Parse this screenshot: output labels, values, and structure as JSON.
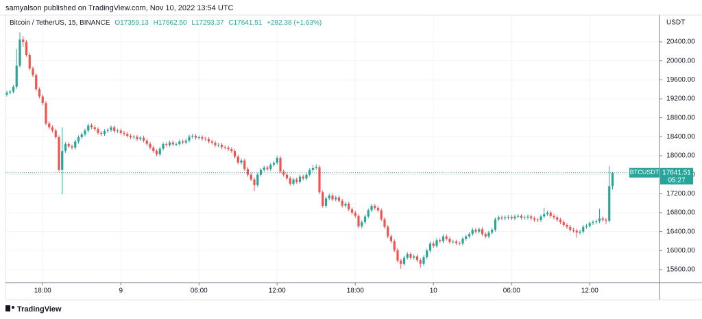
{
  "chart_data": {
    "type": "candlestick",
    "attribution": "samyalson published on TradingView.com, Nov 10, 2022 13:54 UTC",
    "symbol": "Bitcoin / TetherUS, 15, BINANCE",
    "header": {
      "open": "O17359.13",
      "high": "H17662.50",
      "low": "L17293.37",
      "close": "C17641.51",
      "change": "+282.38 (+1.63%)"
    },
    "y_unit": "USDT",
    "ticker": "BTCUSDT",
    "countdown": "05:27",
    "brand": "TradingView",
    "up_color": "#26a69a",
    "down_color": "#ef5350",
    "grid": true,
    "xlim": [
      -0.42,
      200.42
    ],
    "xticks": [
      {
        "value": 11,
        "label": "18:00"
      },
      {
        "value": 35,
        "label": "9"
      },
      {
        "value": 59,
        "label": "06:00"
      },
      {
        "value": 83,
        "label": "12:00"
      },
      {
        "value": 107,
        "label": "18:00"
      },
      {
        "value": 131,
        "label": "10"
      },
      {
        "value": 155,
        "label": "06:00"
      },
      {
        "value": 179,
        "label": "12:00"
      }
    ],
    "ylim": [
      15325,
      20964
    ],
    "yticks": [
      {
        "value": 15600,
        "label": "15600.00"
      },
      {
        "value": 16000,
        "label": "16000.00"
      },
      {
        "value": 16400,
        "label": "16400.00"
      },
      {
        "value": 16800,
        "label": "16800.00"
      },
      {
        "value": 17200,
        "label": "17200.00"
      },
      {
        "value": 17600,
        "label": "17600.00"
      },
      {
        "value": 18000,
        "label": "18000.00"
      },
      {
        "value": 18400,
        "label": "18400.00"
      },
      {
        "value": 18800,
        "label": "18800.00"
      },
      {
        "value": 19200,
        "label": "19200.00"
      },
      {
        "value": 19600,
        "label": "19600.00"
      },
      {
        "value": 20000,
        "label": "20000.00"
      },
      {
        "value": 20400,
        "label": "20400.00"
      }
    ],
    "ohlc": [
      [
        19290,
        19370,
        19250,
        19330
      ],
      [
        19330,
        19390,
        19290,
        19350
      ],
      [
        19350,
        19490,
        19310,
        19450
      ],
      [
        19450,
        20250,
        19410,
        19900
      ],
      [
        19900,
        20600,
        19860,
        20450
      ],
      [
        20450,
        20520,
        20300,
        20400
      ],
      [
        20400,
        20440,
        20085,
        20125
      ],
      [
        20125,
        20165,
        19800,
        19840
      ],
      [
        19840,
        19880,
        19660,
        19700
      ],
      [
        19700,
        19740,
        19360,
        19400
      ],
      [
        19400,
        19440,
        19210,
        19250
      ],
      [
        19250,
        19290,
        19070,
        19110
      ],
      [
        19110,
        19150,
        18640,
        18680
      ],
      [
        18680,
        18720,
        18560,
        18600
      ],
      [
        18600,
        18640,
        18490,
        18530
      ],
      [
        18530,
        18570,
        18350,
        18390
      ],
      [
        18390,
        18430,
        17660,
        17700
      ],
      [
        17700,
        18600,
        17190,
        18100
      ],
      [
        18100,
        18285,
        18060,
        18245
      ],
      [
        18245,
        18285,
        18160,
        18200
      ],
      [
        18200,
        18240,
        18130,
        18170
      ],
      [
        18170,
        18340,
        18130,
        18300
      ],
      [
        18300,
        18430,
        18260,
        18390
      ],
      [
        18390,
        18490,
        18350,
        18450
      ],
      [
        18450,
        18570,
        18410,
        18530
      ],
      [
        18530,
        18680,
        18490,
        18640
      ],
      [
        18640,
        18680,
        18560,
        18600
      ],
      [
        18600,
        18640,
        18520,
        18560
      ],
      [
        18560,
        18600,
        18440,
        18480
      ],
      [
        18480,
        18520,
        18420,
        18460
      ],
      [
        18460,
        18560,
        18420,
        18520
      ],
      [
        18520,
        18580,
        18480,
        18540
      ],
      [
        18540,
        18640,
        18500,
        18600
      ],
      [
        18600,
        18640,
        18480,
        18520
      ],
      [
        18520,
        18570,
        18480,
        18530
      ],
      [
        18530,
        18570,
        18440,
        18480
      ],
      [
        18480,
        18520,
        18420,
        18460
      ],
      [
        18460,
        18500,
        18380,
        18420
      ],
      [
        18420,
        18460,
        18350,
        18390
      ],
      [
        18390,
        18440,
        18350,
        18400
      ],
      [
        18400,
        18440,
        18310,
        18350
      ],
      [
        18350,
        18420,
        18310,
        18380
      ],
      [
        18380,
        18420,
        18280,
        18320
      ],
      [
        18320,
        18360,
        18210,
        18250
      ],
      [
        18250,
        18290,
        18130,
        18170
      ],
      [
        18170,
        18210,
        18060,
        18100
      ],
      [
        18100,
        18140,
        17990,
        18030
      ],
      [
        18030,
        18190,
        17990,
        18150
      ],
      [
        18150,
        18285,
        18110,
        18245
      ],
      [
        18245,
        18285,
        18190,
        18230
      ],
      [
        18230,
        18320,
        18190,
        18280
      ],
      [
        18280,
        18320,
        18200,
        18240
      ],
      [
        18240,
        18285,
        18200,
        18245
      ],
      [
        18245,
        18340,
        18205,
        18300
      ],
      [
        18300,
        18340,
        18240,
        18280
      ],
      [
        18280,
        18360,
        18240,
        18320
      ],
      [
        18320,
        18440,
        18280,
        18400
      ],
      [
        18400,
        18460,
        18360,
        18420
      ],
      [
        18420,
        18460,
        18340,
        18380
      ],
      [
        18380,
        18430,
        18340,
        18390
      ],
      [
        18390,
        18430,
        18320,
        18360
      ],
      [
        18360,
        18400,
        18310,
        18350
      ],
      [
        18350,
        18390,
        18260,
        18300
      ],
      [
        18300,
        18340,
        18235,
        18275
      ],
      [
        18275,
        18315,
        18180,
        18220
      ],
      [
        18220,
        18270,
        18180,
        18230
      ],
      [
        18230,
        18270,
        18140,
        18180
      ],
      [
        18180,
        18220,
        18130,
        18170
      ],
      [
        18170,
        18210,
        18100,
        18140
      ],
      [
        18140,
        18180,
        18060,
        18100
      ],
      [
        18100,
        18140,
        17940,
        17980
      ],
      [
        17980,
        18020,
        17815,
        17855
      ],
      [
        17855,
        17940,
        17815,
        17900
      ],
      [
        17900,
        17940,
        17680,
        17720
      ],
      [
        17720,
        17760,
        17560,
        17600
      ],
      [
        17600,
        17640,
        17460,
        17500
      ],
      [
        17500,
        17540,
        17260,
        17380
      ],
      [
        17380,
        17640,
        17340,
        17600
      ],
      [
        17600,
        17740,
        17560,
        17700
      ],
      [
        17700,
        17790,
        17660,
        17750
      ],
      [
        17750,
        17790,
        17680,
        17720
      ],
      [
        17720,
        17850,
        17680,
        17810
      ],
      [
        17810,
        17890,
        17770,
        17850
      ],
      [
        17850,
        18000,
        17810,
        17955
      ],
      [
        17955,
        17995,
        17630,
        17670
      ],
      [
        17670,
        17710,
        17560,
        17600
      ],
      [
        17600,
        17640,
        17485,
        17525
      ],
      [
        17525,
        17565,
        17370,
        17410
      ],
      [
        17410,
        17540,
        17370,
        17500
      ],
      [
        17500,
        17540,
        17410,
        17450
      ],
      [
        17450,
        17600,
        17410,
        17560
      ],
      [
        17560,
        17600,
        17480,
        17520
      ],
      [
        17520,
        17640,
        17480,
        17600
      ],
      [
        17600,
        17740,
        17560,
        17700
      ],
      [
        17700,
        17800,
        17660,
        17740
      ],
      [
        17740,
        17820,
        17700,
        17760
      ],
      [
        17760,
        17800,
        17190,
        17230
      ],
      [
        17230,
        17270,
        16905,
        16945
      ],
      [
        16945,
        17140,
        16905,
        17100
      ],
      [
        17100,
        17200,
        17060,
        17160
      ],
      [
        17160,
        17200,
        17040,
        17080
      ],
      [
        17080,
        17160,
        17040,
        17120
      ],
      [
        17120,
        17160,
        17010,
        17050
      ],
      [
        17050,
        17090,
        16910,
        16950
      ],
      [
        16950,
        17030,
        16910,
        16990
      ],
      [
        16990,
        17030,
        16830,
        16870
      ],
      [
        16870,
        16910,
        16760,
        16800
      ],
      [
        16800,
        16840,
        16690,
        16730
      ],
      [
        16730,
        16770,
        16470,
        16510
      ],
      [
        16510,
        16640,
        16470,
        16600
      ],
      [
        16600,
        16760,
        16560,
        16720
      ],
      [
        16720,
        16890,
        16680,
        16850
      ],
      [
        16850,
        16985,
        16810,
        16945
      ],
      [
        16945,
        16985,
        16860,
        16900
      ],
      [
        16900,
        16940,
        16810,
        16850
      ],
      [
        16850,
        16890,
        16620,
        16660
      ],
      [
        16660,
        16700,
        16460,
        16500
      ],
      [
        16500,
        16540,
        16260,
        16300
      ],
      [
        16300,
        16340,
        16160,
        16200
      ],
      [
        16200,
        16240,
        15970,
        16010
      ],
      [
        16010,
        16050,
        15750,
        15790
      ],
      [
        15790,
        15830,
        15620,
        15720
      ],
      [
        15720,
        15890,
        15680,
        15850
      ],
      [
        15850,
        15970,
        15810,
        15930
      ],
      [
        15930,
        15970,
        15810,
        15850
      ],
      [
        15850,
        15920,
        15810,
        15880
      ],
      [
        15880,
        15920,
        15760,
        15800
      ],
      [
        15800,
        15840,
        15640,
        15720
      ],
      [
        15720,
        15900,
        15680,
        15860
      ],
      [
        15860,
        16040,
        15820,
        16000
      ],
      [
        16000,
        16190,
        15960,
        16150
      ],
      [
        16150,
        16190,
        16060,
        16100
      ],
      [
        16100,
        16260,
        16060,
        16220
      ],
      [
        16220,
        16260,
        16160,
        16200
      ],
      [
        16200,
        16340,
        16160,
        16300
      ],
      [
        16300,
        16340,
        16210,
        16250
      ],
      [
        16250,
        16290,
        16140,
        16180
      ],
      [
        16180,
        16230,
        16140,
        16190
      ],
      [
        16190,
        16230,
        16120,
        16160
      ],
      [
        16160,
        16200,
        16110,
        16150
      ],
      [
        16150,
        16290,
        16110,
        16250
      ],
      [
        16250,
        16340,
        16210,
        16300
      ],
      [
        16300,
        16390,
        16260,
        16350
      ],
      [
        16350,
        16480,
        16310,
        16440
      ],
      [
        16440,
        16480,
        16360,
        16400
      ],
      [
        16400,
        16490,
        16360,
        16450
      ],
      [
        16450,
        16490,
        16310,
        16350
      ],
      [
        16350,
        16390,
        16260,
        16300
      ],
      [
        16300,
        16420,
        16260,
        16380
      ],
      [
        16380,
        16480,
        16340,
        16440
      ],
      [
        16440,
        16700,
        16400,
        16660
      ],
      [
        16660,
        16740,
        16620,
        16700
      ],
      [
        16700,
        16740,
        16640,
        16680
      ],
      [
        16680,
        16740,
        16640,
        16700
      ],
      [
        16700,
        16750,
        16660,
        16710
      ],
      [
        16710,
        16750,
        16640,
        16680
      ],
      [
        16680,
        16760,
        16640,
        16720
      ],
      [
        16720,
        16770,
        16680,
        16730
      ],
      [
        16730,
        16770,
        16650,
        16690
      ],
      [
        16690,
        16740,
        16650,
        16700
      ],
      [
        16700,
        16760,
        16660,
        16720
      ],
      [
        16720,
        16760,
        16640,
        16680
      ],
      [
        16680,
        16720,
        16610,
        16650
      ],
      [
        16650,
        16690,
        16600,
        16640
      ],
      [
        16640,
        16760,
        16600,
        16720
      ],
      [
        16720,
        16900,
        16680,
        16770
      ],
      [
        16770,
        16840,
        16730,
        16800
      ],
      [
        16800,
        16840,
        16690,
        16730
      ],
      [
        16730,
        16770,
        16660,
        16700
      ],
      [
        16700,
        16740,
        16610,
        16650
      ],
      [
        16650,
        16690,
        16560,
        16600
      ],
      [
        16600,
        16640,
        16500,
        16540
      ],
      [
        16540,
        16580,
        16460,
        16500
      ],
      [
        16500,
        16540,
        16400,
        16440
      ],
      [
        16440,
        16480,
        16380,
        16420
      ],
      [
        16420,
        16460,
        16270,
        16380
      ],
      [
        16380,
        16440,
        16340,
        16400
      ],
      [
        16400,
        16540,
        16360,
        16500
      ],
      [
        16500,
        16560,
        16460,
        16520
      ],
      [
        16520,
        16620,
        16480,
        16580
      ],
      [
        16580,
        16640,
        16540,
        16600
      ],
      [
        16600,
        16660,
        16560,
        16620
      ],
      [
        16620,
        16880,
        16580,
        16680
      ],
      [
        16680,
        16720,
        16610,
        16650
      ],
      [
        16650,
        16690,
        16560,
        16630
      ],
      [
        16630,
        17780,
        16590,
        17359.13
      ],
      [
        17359.13,
        17662.5,
        17293.37,
        17641.51
      ]
    ]
  }
}
